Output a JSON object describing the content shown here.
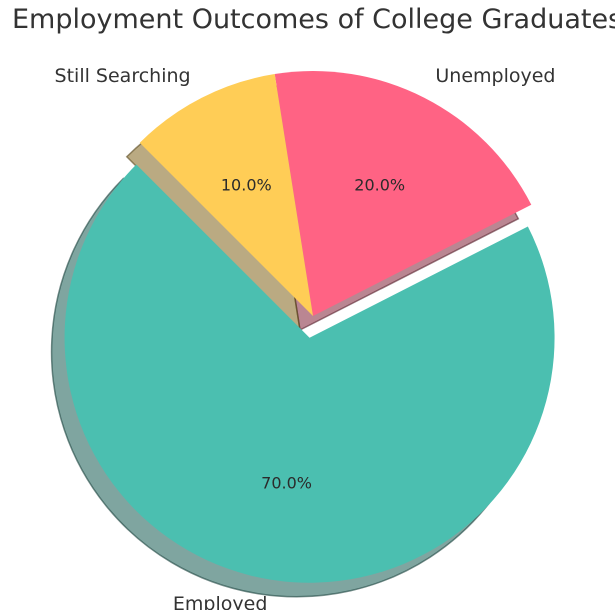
{
  "chart_data": {
    "type": "pie",
    "title": "Employment Outcomes of College Graduates",
    "categories": [
      "Employed",
      "Unemployed",
      "Still Searching"
    ],
    "values": [
      70.0,
      20.0,
      10.0
    ],
    "percent_labels": [
      "70.0%",
      "20.0%",
      "10.0%"
    ],
    "colors": [
      "#4BBFB0",
      "#FF6384",
      "#FFCD56"
    ],
    "exploded": [
      "Employed"
    ],
    "shadow": true,
    "start_angle_deg": 135,
    "direction": "counterclockwise",
    "legend": "none"
  }
}
